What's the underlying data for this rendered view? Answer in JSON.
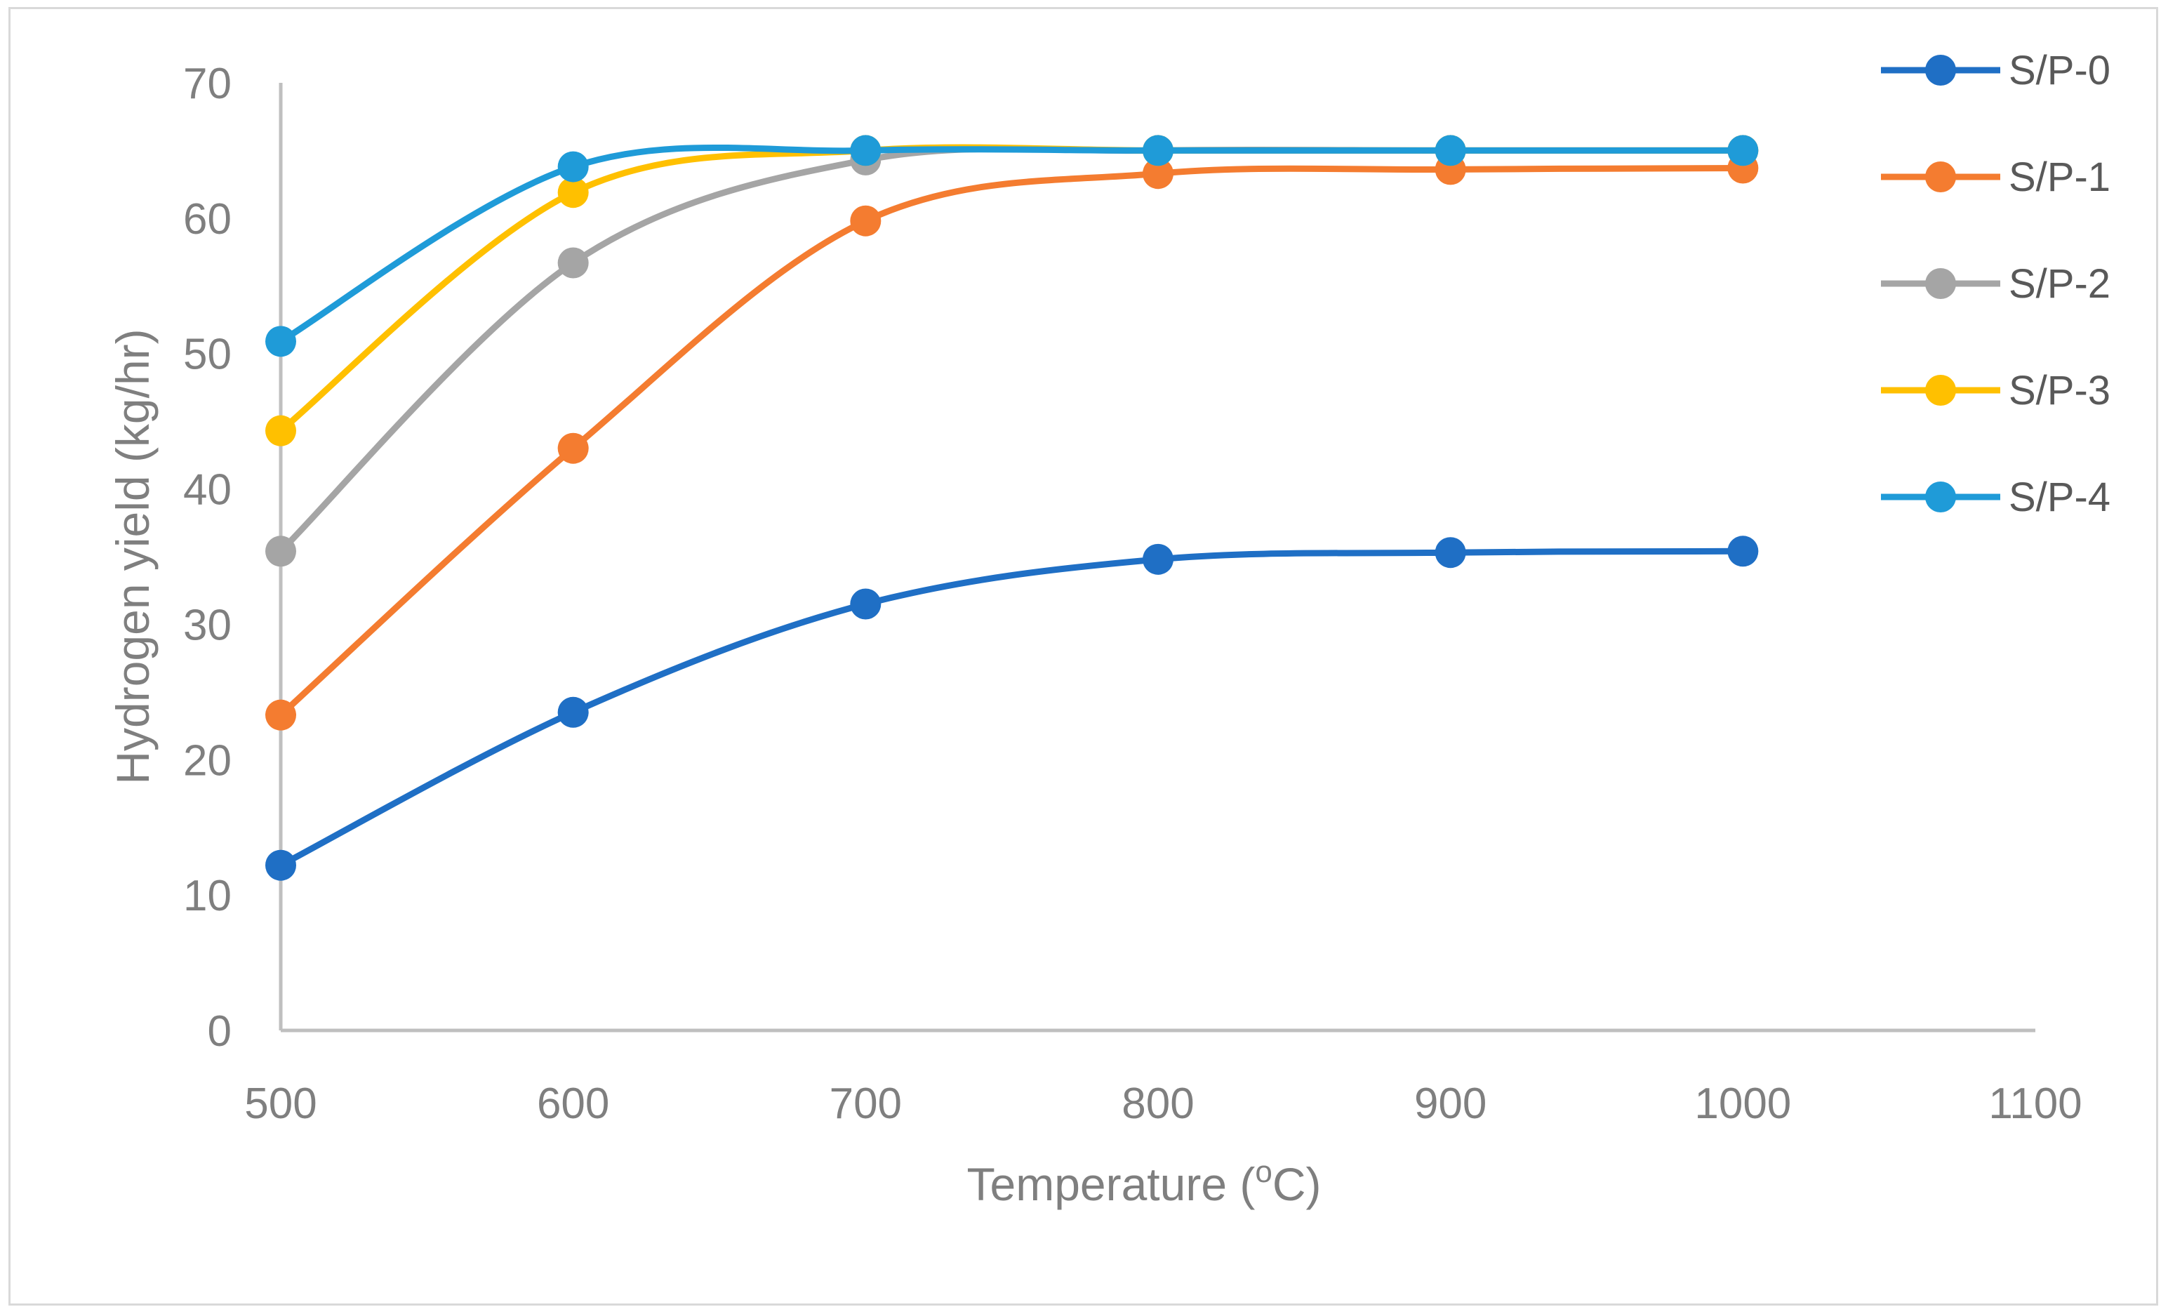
{
  "chart_data": {
    "type": "line",
    "smooth": true,
    "title": "",
    "xlabel": "Temperature (",
    "xlabel_sup": "o",
    "xlabel_suffix": "C)",
    "ylabel": "Hydrogen yield (kg/hr)",
    "xlim": [
      500,
      1100
    ],
    "ylim": [
      0,
      70
    ],
    "x_ticks": [
      500,
      600,
      700,
      800,
      900,
      1000,
      1100
    ],
    "y_ticks": [
      0,
      10,
      20,
      30,
      40,
      50,
      60,
      70
    ],
    "grid": false,
    "legend_position": "right",
    "x": [
      500,
      600,
      700,
      800,
      900,
      1000
    ],
    "series": [
      {
        "name": "S/P-0",
        "color": "#1f6fc5",
        "values": [
          12.2,
          23.5,
          31.5,
          34.8,
          35.3,
          35.4
        ]
      },
      {
        "name": "S/P-1",
        "color": "#f47c30",
        "values": [
          23.3,
          43.0,
          59.8,
          63.3,
          63.6,
          63.7
        ]
      },
      {
        "name": "S/P-2",
        "color": "#a5a5a5",
        "values": [
          35.4,
          56.7,
          64.3,
          65.0,
          65.0,
          65.0
        ]
      },
      {
        "name": "S/P-3",
        "color": "#ffc000",
        "values": [
          44.3,
          61.9,
          65.0,
          65.0,
          65.0,
          65.0
        ]
      },
      {
        "name": "S/P-4",
        "color": "#1f9bd8",
        "values": [
          50.9,
          63.8,
          65.0,
          65.0,
          65.0,
          65.0
        ]
      }
    ]
  }
}
